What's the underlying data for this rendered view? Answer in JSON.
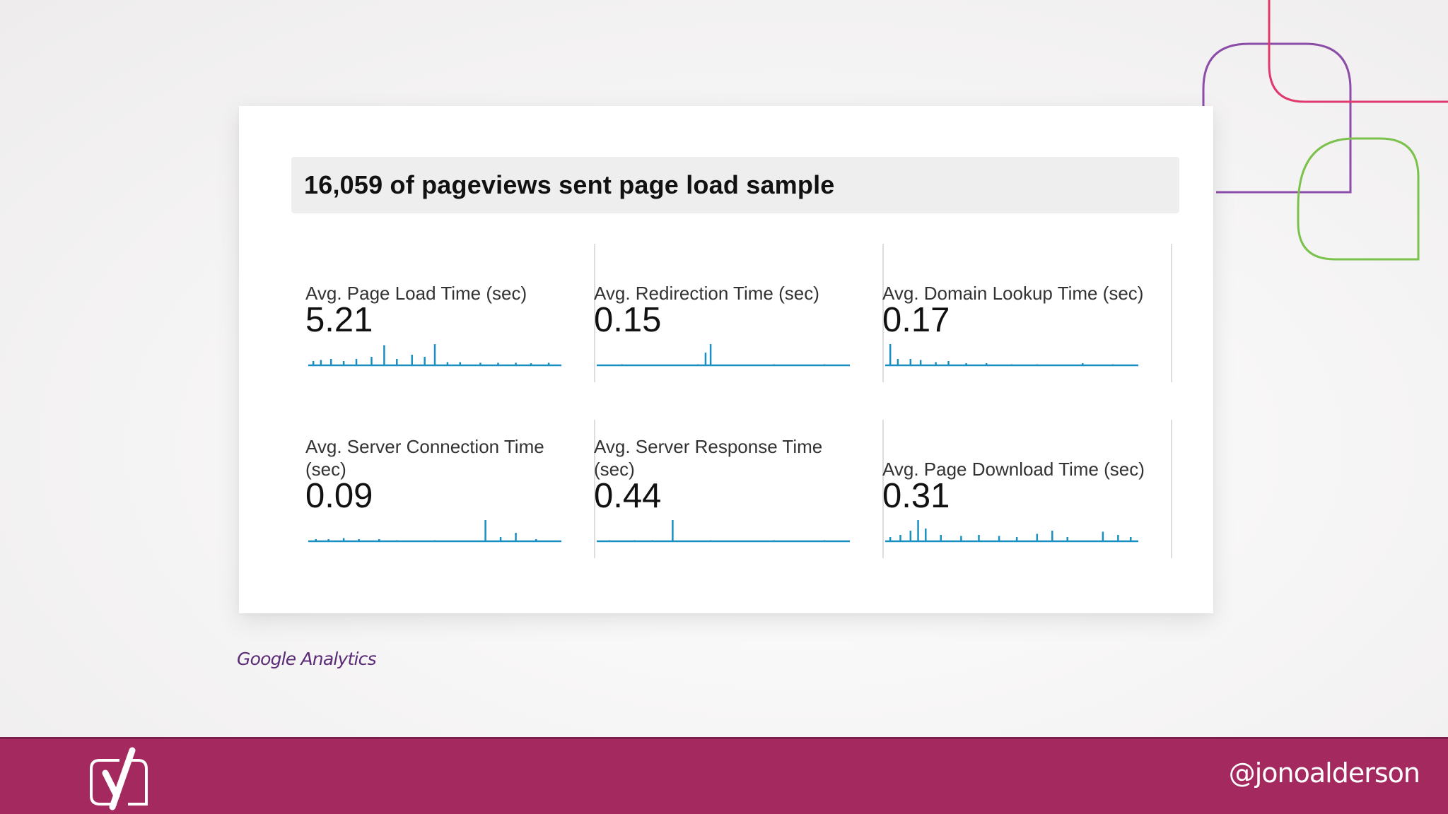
{
  "slide": {
    "header_title": "16,059 of pageviews sent page load sample",
    "caption": "Google Analytics",
    "handle": "@jonoalderson",
    "colors": {
      "footer": "#a4295f",
      "sparkline": "#1a8fc2",
      "deco_purple": "#8b4da8",
      "deco_pink": "#e0396e",
      "deco_green": "#7bc24c",
      "caption": "#5a2a76"
    },
    "logo_icon": "yoast-y-logo-icon"
  },
  "metrics": [
    {
      "label": "Avg. Page Load Time (sec)",
      "value": "5.21",
      "spikes": [
        [
          0.02,
          0.2
        ],
        [
          0.05,
          0.25
        ],
        [
          0.09,
          0.3
        ],
        [
          0.14,
          0.2
        ],
        [
          0.19,
          0.3
        ],
        [
          0.25,
          0.4
        ],
        [
          0.3,
          0.95
        ],
        [
          0.35,
          0.3
        ],
        [
          0.41,
          0.5
        ],
        [
          0.46,
          0.4
        ],
        [
          0.5,
          1.0
        ],
        [
          0.55,
          0.15
        ],
        [
          0.6,
          0.15
        ],
        [
          0.68,
          0.12
        ],
        [
          0.75,
          0.12
        ],
        [
          0.82,
          0.12
        ],
        [
          0.88,
          0.1
        ],
        [
          0.95,
          0.12
        ]
      ]
    },
    {
      "label": "Avg. Redirection Time (sec)",
      "value": "0.15",
      "spikes": [
        [
          0.1,
          0.05
        ],
        [
          0.4,
          0.05
        ],
        [
          0.43,
          0.6
        ],
        [
          0.45,
          1.0
        ],
        [
          0.7,
          0.05
        ],
        [
          0.9,
          0.05
        ]
      ]
    },
    {
      "label": "Avg. Domain Lookup Time (sec)",
      "value": "0.17",
      "spikes": [
        [
          0.02,
          1.0
        ],
        [
          0.05,
          0.3
        ],
        [
          0.1,
          0.3
        ],
        [
          0.14,
          0.25
        ],
        [
          0.2,
          0.15
        ],
        [
          0.25,
          0.2
        ],
        [
          0.32,
          0.1
        ],
        [
          0.4,
          0.1
        ],
        [
          0.5,
          0.05
        ],
        [
          0.6,
          0.05
        ],
        [
          0.78,
          0.1
        ],
        [
          0.9,
          0.05
        ]
      ]
    },
    {
      "label": "Avg. Server Connection Time (sec)",
      "value": "0.09",
      "spikes": [
        [
          0.03,
          0.1
        ],
        [
          0.08,
          0.1
        ],
        [
          0.14,
          0.15
        ],
        [
          0.2,
          0.1
        ],
        [
          0.28,
          0.1
        ],
        [
          0.35,
          0.05
        ],
        [
          0.5,
          0.05
        ],
        [
          0.7,
          1.0
        ],
        [
          0.76,
          0.2
        ],
        [
          0.82,
          0.4
        ],
        [
          0.9,
          0.1
        ]
      ]
    },
    {
      "label": "Avg. Server Response Time (sec)",
      "value": "0.44",
      "spikes": [
        [
          0.05,
          0.05
        ],
        [
          0.15,
          0.05
        ],
        [
          0.22,
          0.05
        ],
        [
          0.3,
          1.0
        ],
        [
          0.45,
          0.05
        ],
        [
          0.7,
          0.05
        ],
        [
          0.9,
          0.05
        ]
      ]
    },
    {
      "label": "Avg. Page Download Time (sec)",
      "value": "0.31",
      "spikes": [
        [
          0.02,
          0.2
        ],
        [
          0.06,
          0.3
        ],
        [
          0.1,
          0.5
        ],
        [
          0.13,
          1.0
        ],
        [
          0.16,
          0.6
        ],
        [
          0.22,
          0.3
        ],
        [
          0.3,
          0.25
        ],
        [
          0.37,
          0.3
        ],
        [
          0.45,
          0.25
        ],
        [
          0.52,
          0.2
        ],
        [
          0.6,
          0.35
        ],
        [
          0.66,
          0.5
        ],
        [
          0.72,
          0.2
        ],
        [
          0.86,
          0.45
        ],
        [
          0.92,
          0.3
        ],
        [
          0.97,
          0.2
        ]
      ]
    }
  ]
}
